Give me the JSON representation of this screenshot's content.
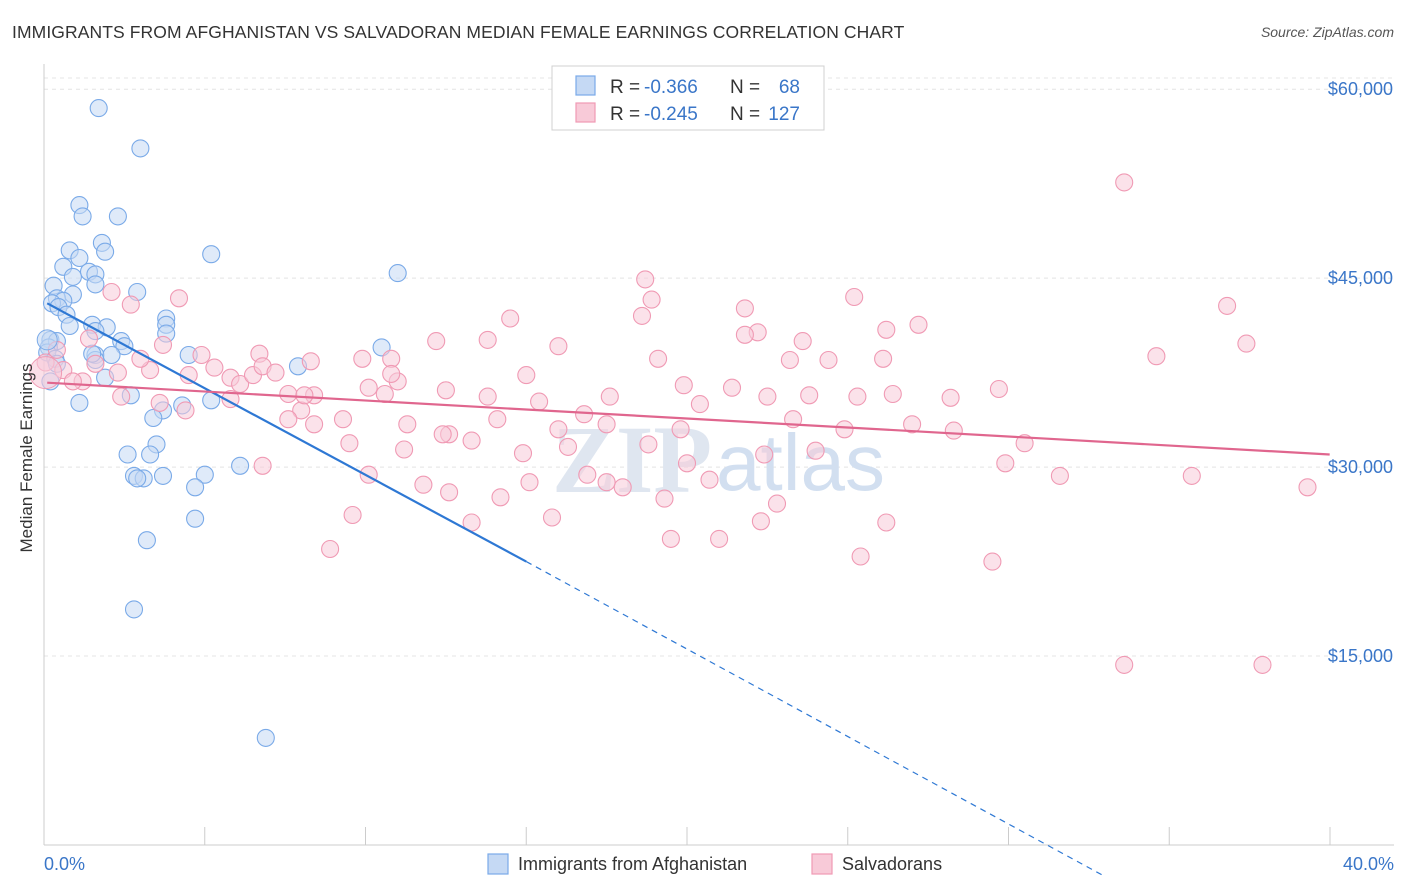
{
  "header": {
    "title": "IMMIGRANTS FROM AFGHANISTAN VS SALVADORAN MEDIAN FEMALE EARNINGS CORRELATION CHART",
    "source": "Source: ZipAtlas.com"
  },
  "watermark": {
    "zip": "ZIP",
    "atlas": "atlas"
  },
  "legend": {
    "r_label": "R =",
    "n_label": "N =",
    "rows": [
      {
        "r": "-0.366",
        "n": "68"
      },
      {
        "r": "-0.245",
        "n": "127"
      }
    ]
  },
  "chart_data": {
    "type": "scatter",
    "title": "IMMIGRANTS FROM AFGHANISTAN VS SALVADORAN MEDIAN FEMALE EARNINGS CORRELATION CHART",
    "xlabel": "",
    "ylabel": "Median Female Earnings",
    "xlim": [
      0,
      40
    ],
    "ylim": [
      0,
      62000
    ],
    "x_tick_labels": [
      "0.0%",
      "40.0%"
    ],
    "y_ticks": [
      {
        "value": 15000,
        "label": "$15,000"
      },
      {
        "value": 30000,
        "label": "$30,000"
      },
      {
        "value": 45000,
        "label": "$45,000"
      },
      {
        "value": 60000,
        "label": "$60,000"
      }
    ],
    "grid": true,
    "series": [
      {
        "name": "Immigrants from Afghanistan",
        "color": "#7aaae8",
        "fill": "#c5d9f4",
        "line_color": "#2e78d4",
        "trend": {
          "x0": 0.1,
          "y0": 43000,
          "x1": 15.0,
          "y1": 22500,
          "dash_x1": 33.0,
          "dash_y1": -2500
        },
        "points": [
          [
            1.7,
            58500
          ],
          [
            3.0,
            55300
          ],
          [
            1.1,
            50800
          ],
          [
            1.2,
            49900
          ],
          [
            2.3,
            49900
          ],
          [
            5.2,
            46900
          ],
          [
            1.8,
            47800
          ],
          [
            0.8,
            47200
          ],
          [
            1.1,
            46600
          ],
          [
            1.9,
            47100
          ],
          [
            0.6,
            45900
          ],
          [
            1.4,
            45500
          ],
          [
            1.6,
            45300
          ],
          [
            0.9,
            45100
          ],
          [
            1.6,
            44500
          ],
          [
            0.3,
            44400
          ],
          [
            11.0,
            45400
          ],
          [
            2.9,
            43900
          ],
          [
            0.9,
            43700
          ],
          [
            0.4,
            43400
          ],
          [
            0.6,
            43200
          ],
          [
            0.25,
            43000
          ],
          [
            0.45,
            42700
          ],
          [
            0.7,
            42100
          ],
          [
            3.8,
            41800
          ],
          [
            3.8,
            41300
          ],
          [
            1.5,
            41300
          ],
          [
            1.95,
            41100
          ],
          [
            1.6,
            40800
          ],
          [
            3.8,
            40600
          ],
          [
            0.2,
            40100
          ],
          [
            0.4,
            40000
          ],
          [
            2.4,
            40000
          ],
          [
            2.5,
            39600
          ],
          [
            0.15,
            39500
          ],
          [
            10.5,
            39500
          ],
          [
            0.1,
            39100
          ],
          [
            4.5,
            38900
          ],
          [
            1.6,
            38900
          ],
          [
            2.1,
            38900
          ],
          [
            0.35,
            38600
          ],
          [
            1.6,
            38500
          ],
          [
            0.4,
            38200
          ],
          [
            7.9,
            38000
          ],
          [
            1.9,
            37100
          ],
          [
            2.7,
            35700
          ],
          [
            0.2,
            36800
          ],
          [
            5.2,
            35300
          ],
          [
            1.1,
            35100
          ],
          [
            4.3,
            34900
          ],
          [
            3.7,
            34500
          ],
          [
            3.4,
            33900
          ],
          [
            3.5,
            31800
          ],
          [
            2.6,
            31000
          ],
          [
            3.3,
            31000
          ],
          [
            6.1,
            30100
          ],
          [
            5.0,
            29400
          ],
          [
            3.7,
            29300
          ],
          [
            2.8,
            29300
          ],
          [
            3.1,
            29100
          ],
          [
            2.9,
            29100
          ],
          [
            4.7,
            28400
          ],
          [
            4.7,
            25900
          ],
          [
            3.2,
            24200
          ],
          [
            2.8,
            18700
          ],
          [
            6.9,
            8500
          ],
          [
            1.5,
            39000
          ],
          [
            0.8,
            41200
          ]
        ]
      },
      {
        "name": "Salvadorans",
        "color": "#f09ab4",
        "fill": "#f8cad8",
        "line_color": "#e0668e",
        "trend": {
          "x0": 0.1,
          "y0": 36700,
          "x1": 39.99,
          "y1": 31000
        },
        "points": [
          [
            33.6,
            52600
          ],
          [
            18.7,
            44900
          ],
          [
            25.2,
            43500
          ],
          [
            4.2,
            43400
          ],
          [
            18.9,
            43300
          ],
          [
            2.7,
            42900
          ],
          [
            2.1,
            43900
          ],
          [
            21.8,
            42600
          ],
          [
            14.5,
            41800
          ],
          [
            18.6,
            42000
          ],
          [
            36.8,
            42800
          ],
          [
            27.2,
            41300
          ],
          [
            26.2,
            40900
          ],
          [
            22.2,
            40700
          ],
          [
            21.8,
            40500
          ],
          [
            12.2,
            40000
          ],
          [
            13.8,
            40100
          ],
          [
            23.6,
            40000
          ],
          [
            16.0,
            39600
          ],
          [
            3.7,
            39700
          ],
          [
            4.9,
            38900
          ],
          [
            6.7,
            39000
          ],
          [
            8.3,
            38400
          ],
          [
            10.8,
            38600
          ],
          [
            19.1,
            38600
          ],
          [
            26.1,
            38600
          ],
          [
            23.2,
            38500
          ],
          [
            24.4,
            38500
          ],
          [
            34.6,
            38800
          ],
          [
            37.4,
            39800
          ],
          [
            0.05,
            38300
          ],
          [
            0.6,
            37700
          ],
          [
            1.2,
            36800
          ],
          [
            4.5,
            37300
          ],
          [
            5.8,
            37100
          ],
          [
            6.1,
            36600
          ],
          [
            6.5,
            37300
          ],
          [
            6.8,
            38000
          ],
          [
            7.6,
            35800
          ],
          [
            8.4,
            35700
          ],
          [
            10.1,
            36300
          ],
          [
            11.0,
            36800
          ],
          [
            12.5,
            36100
          ],
          [
            13.8,
            35600
          ],
          [
            15.4,
            35200
          ],
          [
            17.6,
            35600
          ],
          [
            19.9,
            36500
          ],
          [
            21.4,
            36300
          ],
          [
            22.5,
            35600
          ],
          [
            23.8,
            35700
          ],
          [
            25.3,
            35600
          ],
          [
            26.4,
            35800
          ],
          [
            29.7,
            36200
          ],
          [
            2.4,
            35600
          ],
          [
            3.6,
            35100
          ],
          [
            4.4,
            34500
          ],
          [
            5.8,
            35400
          ],
          [
            8.0,
            34500
          ],
          [
            9.3,
            33800
          ],
          [
            11.3,
            33400
          ],
          [
            12.6,
            32600
          ],
          [
            14.1,
            33800
          ],
          [
            16.0,
            33000
          ],
          [
            17.5,
            33400
          ],
          [
            19.8,
            33000
          ],
          [
            23.3,
            33800
          ],
          [
            24.9,
            33000
          ],
          [
            27.0,
            33400
          ],
          [
            28.3,
            32900
          ],
          [
            7.6,
            33800
          ],
          [
            8.4,
            33400
          ],
          [
            9.5,
            31900
          ],
          [
            11.2,
            31400
          ],
          [
            13.3,
            32100
          ],
          [
            14.9,
            31100
          ],
          [
            16.3,
            31600
          ],
          [
            18.8,
            31800
          ],
          [
            20.0,
            30300
          ],
          [
            22.4,
            31000
          ],
          [
            24.0,
            31300
          ],
          [
            29.9,
            30300
          ],
          [
            31.6,
            29300
          ],
          [
            35.7,
            29300
          ],
          [
            39.3,
            28400
          ],
          [
            6.8,
            30100
          ],
          [
            10.1,
            29400
          ],
          [
            11.8,
            28600
          ],
          [
            12.6,
            28000
          ],
          [
            14.2,
            27600
          ],
          [
            15.1,
            28800
          ],
          [
            16.9,
            29400
          ],
          [
            18.0,
            28400
          ],
          [
            19.3,
            27500
          ],
          [
            20.7,
            29000
          ],
          [
            22.8,
            27100
          ],
          [
            9.6,
            26200
          ],
          [
            15.8,
            26000
          ],
          [
            17.5,
            28800
          ],
          [
            12.4,
            32600
          ],
          [
            21.0,
            24300
          ],
          [
            19.5,
            24300
          ],
          [
            25.4,
            22900
          ],
          [
            26.2,
            25600
          ],
          [
            29.5,
            22500
          ],
          [
            8.9,
            23500
          ],
          [
            22.3,
            25700
          ],
          [
            33.6,
            14300
          ],
          [
            37.9,
            14300
          ],
          [
            13.3,
            25600
          ],
          [
            10.6,
            35800
          ],
          [
            9.9,
            38600
          ],
          [
            8.1,
            35700
          ],
          [
            5.3,
            37900
          ],
          [
            3.3,
            37700
          ],
          [
            1.6,
            38200
          ],
          [
            0.4,
            39300
          ],
          [
            0.9,
            36800
          ],
          [
            2.3,
            37500
          ],
          [
            3.0,
            38600
          ],
          [
            1.4,
            40200
          ],
          [
            10.8,
            37400
          ],
          [
            16.8,
            34200
          ],
          [
            28.2,
            35500
          ],
          [
            20.4,
            35000
          ],
          [
            15.0,
            37300
          ],
          [
            30.5,
            31900
          ],
          [
            7.2,
            37500
          ]
        ]
      }
    ]
  },
  "bottom_legend": [
    {
      "label": "Immigrants from Afghanistan"
    },
    {
      "label": "Salvadorans"
    }
  ]
}
